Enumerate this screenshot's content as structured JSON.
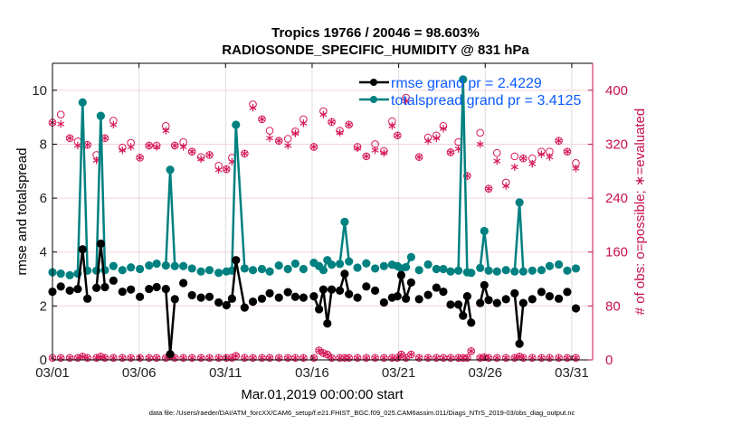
{
  "chart_data": {
    "type": "line",
    "title": [
      "Tropics 19766 / 20046 = 98.603%",
      "RADIOSONDE_SPECIFIC_HUMIDITY @ 831 hPa"
    ],
    "xlabel": "Mar.01,2019 00:00:00 start",
    "ylabel": "rmse and totalspread",
    "y2label": "# of obs: o=possible; ∗=evaluated",
    "footnote": "data file: /Users/raeder/DAI/ATM_forcXX/CAM6_setup/f.e21.FHIST_BGC.f09_025.CAM6assim.011/Diags_NTrS_2019-03/obs_diag_output.nc",
    "xticks": {
      "days": [
        0,
        5,
        10,
        15,
        20,
        25,
        30
      ],
      "labels": [
        "03/01",
        "03/06",
        "03/11",
        "03/16",
        "03/21",
        "03/26",
        "03/31"
      ]
    },
    "xlim_days": [
      0,
      31.2
    ],
    "ylim": [
      0,
      11
    ],
    "yticks": [
      0,
      2,
      4,
      6,
      8,
      10
    ],
    "y2lim": [
      0,
      440
    ],
    "y2ticks": [
      0,
      80,
      160,
      240,
      320,
      400
    ],
    "grid": true,
    "legend": {
      "placement": "top-right",
      "entries": [
        {
          "label": "rmse grand pr = 2.4229",
          "color": "#000000"
        },
        {
          "label": "totalspread grand pr = 3.4125",
          "color": "#008080"
        }
      ]
    },
    "colors": {
      "rmse": "#000000",
      "totalspread": "#008080",
      "obs": "#d6195a",
      "legend_text": "#0b5bff",
      "axis_right": "#c8104e"
    },
    "x_days": [
      0,
      0.48,
      1.0,
      1.46,
      1.74,
      2.02,
      2.54,
      2.79,
      3.03,
      3.52,
      4.04,
      4.53,
      5.05,
      5.58,
      6.02,
      6.55,
      6.8,
      7.07,
      7.56,
      8.06,
      8.58,
      9.07,
      9.6,
      10.05,
      10.37,
      10.6,
      11.1,
      11.58,
      12.1,
      12.55,
      13.08,
      13.6,
      14.03,
      14.5,
      15.1,
      15.4,
      15.65,
      15.88,
      16.13,
      16.6,
      16.88,
      17.13,
      17.62,
      18.13,
      18.64,
      19.15,
      19.62,
      19.93,
      20.15,
      20.42,
      20.72,
      21.18,
      21.7,
      22.18,
      22.58,
      23.0,
      23.45,
      23.72,
      23.96,
      24.19,
      24.71,
      24.95,
      25.2,
      25.68,
      26.2,
      26.7,
      26.98,
      27.2,
      27.72,
      28.25,
      28.72,
      29.25,
      29.74,
      30.24
    ],
    "series": [
      {
        "name": "rmse",
        "values": [
          2.53,
          2.72,
          2.57,
          2.63,
          4.1,
          2.27,
          2.67,
          4.31,
          2.7,
          2.94,
          2.53,
          2.61,
          2.34,
          2.63,
          2.7,
          2.63,
          0.21,
          2.25,
          2.85,
          2.4,
          2.31,
          2.34,
          2.13,
          2.03,
          2.27,
          3.7,
          1.94,
          2.16,
          2.27,
          2.47,
          2.31,
          2.51,
          2.34,
          2.31,
          2.36,
          1.88,
          2.61,
          1.35,
          2.61,
          2.57,
          3.19,
          2.44,
          2.31,
          2.72,
          2.57,
          2.13,
          2.31,
          2.36,
          3.14,
          2.27,
          2.87,
          2.25,
          2.41,
          2.68,
          2.53,
          2.05,
          2.05,
          1.64,
          2.36,
          1.38,
          2.11,
          2.77,
          2.22,
          2.11,
          2.25,
          2.47,
          0.6,
          2.11,
          2.25,
          2.52,
          2.36,
          2.27,
          2.52,
          1.91
        ]
      },
      {
        "name": "totalspread",
        "values": [
          3.25,
          3.2,
          3.14,
          3.2,
          9.55,
          3.31,
          3.31,
          9.05,
          3.33,
          3.48,
          3.33,
          3.43,
          3.37,
          3.5,
          3.57,
          3.5,
          7.05,
          3.48,
          3.48,
          3.39,
          3.28,
          3.33,
          3.23,
          3.28,
          3.31,
          8.72,
          3.39,
          3.33,
          3.37,
          3.28,
          3.5,
          3.37,
          3.57,
          3.37,
          3.6,
          3.48,
          3.33,
          3.7,
          3.53,
          3.56,
          5.12,
          3.65,
          3.42,
          3.58,
          3.39,
          3.48,
          3.53,
          3.48,
          3.39,
          3.44,
          3.81,
          3.33,
          3.54,
          3.37,
          3.37,
          3.28,
          3.31,
          10.4,
          3.25,
          3.23,
          3.41,
          4.78,
          3.31,
          3.28,
          3.33,
          3.28,
          5.84,
          3.28,
          3.31,
          3.33,
          3.48,
          3.54,
          3.31,
          3.39
        ]
      },
      {
        "name": "obs_possible",
        "values": [
          352,
          364,
          329,
          324,
          0,
          319,
          304,
          0,
          329,
          355,
          315,
          322,
          300,
          318,
          318,
          347,
          0,
          318,
          323,
          309,
          301,
          304,
          288,
          283,
          300,
          0,
          306,
          379,
          357,
          340,
          325,
          328,
          339,
          357,
          316,
          0,
          369,
          0,
          353,
          340,
          0,
          349,
          316,
          302,
          320,
          310,
          354,
          333,
          0,
          389,
          0,
          301,
          330,
          333,
          347,
          308,
          323,
          0,
          273,
          0,
          337,
          0,
          254,
          307,
          263,
          302,
          0,
          299,
          299,
          309,
          309,
          325,
          309,
          292
        ]
      },
      {
        "name": "obs_evaluated",
        "values": [
          352,
          350,
          329,
          318,
          0,
          319,
          296,
          0,
          329,
          349,
          311,
          316,
          300,
          318,
          316,
          340,
          0,
          318,
          316,
          309,
          298,
          304,
          282,
          283,
          294,
          0,
          306,
          374,
          357,
          329,
          325,
          318,
          336,
          351,
          316,
          0,
          364,
          0,
          353,
          337,
          0,
          349,
          314,
          302,
          311,
          307,
          347,
          333,
          0,
          384,
          0,
          301,
          325,
          329,
          343,
          308,
          313,
          0,
          273,
          0,
          320,
          0,
          254,
          295,
          258,
          286,
          0,
          299,
          291,
          305,
          301,
          325,
          309,
          284
        ]
      },
      {
        "name": "obs_low",
        "note": "lower row of evaluated counts near zero",
        "values": [
          3,
          3,
          3,
          3,
          5,
          3,
          3,
          5,
          3,
          3,
          3,
          3,
          3,
          3,
          3,
          3,
          6,
          3,
          3,
          3,
          3,
          3,
          3,
          3,
          3,
          6,
          3,
          3,
          3,
          3,
          3,
          3,
          3,
          3,
          3,
          14,
          10,
          8,
          3,
          3,
          3,
          3,
          3,
          3,
          3,
          3,
          3,
          3,
          8,
          3,
          8,
          3,
          3,
          3,
          3,
          3,
          3,
          3,
          3,
          13,
          3,
          4,
          3,
          3,
          3,
          3,
          5,
          3,
          3,
          3,
          3,
          3,
          3,
          3
        ]
      }
    ]
  }
}
